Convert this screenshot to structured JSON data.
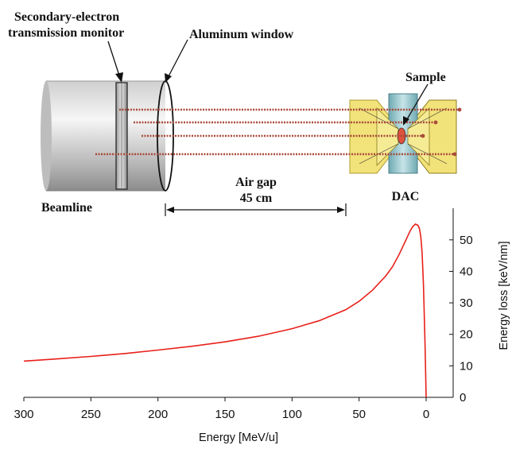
{
  "labels": {
    "monitor_line1": "Secondary-electron",
    "monitor_line2": "transmission monitor",
    "aluminum_window": "Aluminum window",
    "sample": "Sample",
    "beamline": "Beamline",
    "air_gap": "Air gap",
    "air_gap_distance": "45 cm",
    "dac": "DAC"
  },
  "colors": {
    "curve": "#e8201a",
    "beam": "#a84b3a",
    "anvil_fill": "#f2e27a",
    "gasket_fill": "#8ec2c8"
  },
  "chart_data": {
    "type": "line",
    "xlabel": "Energy [MeV/u]",
    "ylabel": "Energy loss [keV/nm]",
    "xlim": [
      300,
      -20
    ],
    "ylim": [
      0,
      58
    ],
    "x_ticks": [
      300,
      250,
      200,
      150,
      100,
      50,
      0
    ],
    "y_ticks": [
      0,
      10,
      20,
      30,
      40,
      50
    ],
    "grid": false,
    "series": [
      {
        "x": [
          300,
          275,
          250,
          225,
          200,
          175,
          150,
          125,
          100,
          80,
          60,
          50,
          40,
          30,
          25,
          20,
          15,
          12,
          10,
          8,
          6,
          5,
          4,
          3,
          2,
          1,
          0.5,
          0
        ],
        "y": [
          11.5,
          12.2,
          13.0,
          13.9,
          15.0,
          16.2,
          17.6,
          19.4,
          21.8,
          24.3,
          27.8,
          30.5,
          34.0,
          38.6,
          41.5,
          45.5,
          50.0,
          52.8,
          54.2,
          55.0,
          54.6,
          53.5,
          51.0,
          46.0,
          36.0,
          20.0,
          10.0,
          0
        ]
      }
    ]
  }
}
